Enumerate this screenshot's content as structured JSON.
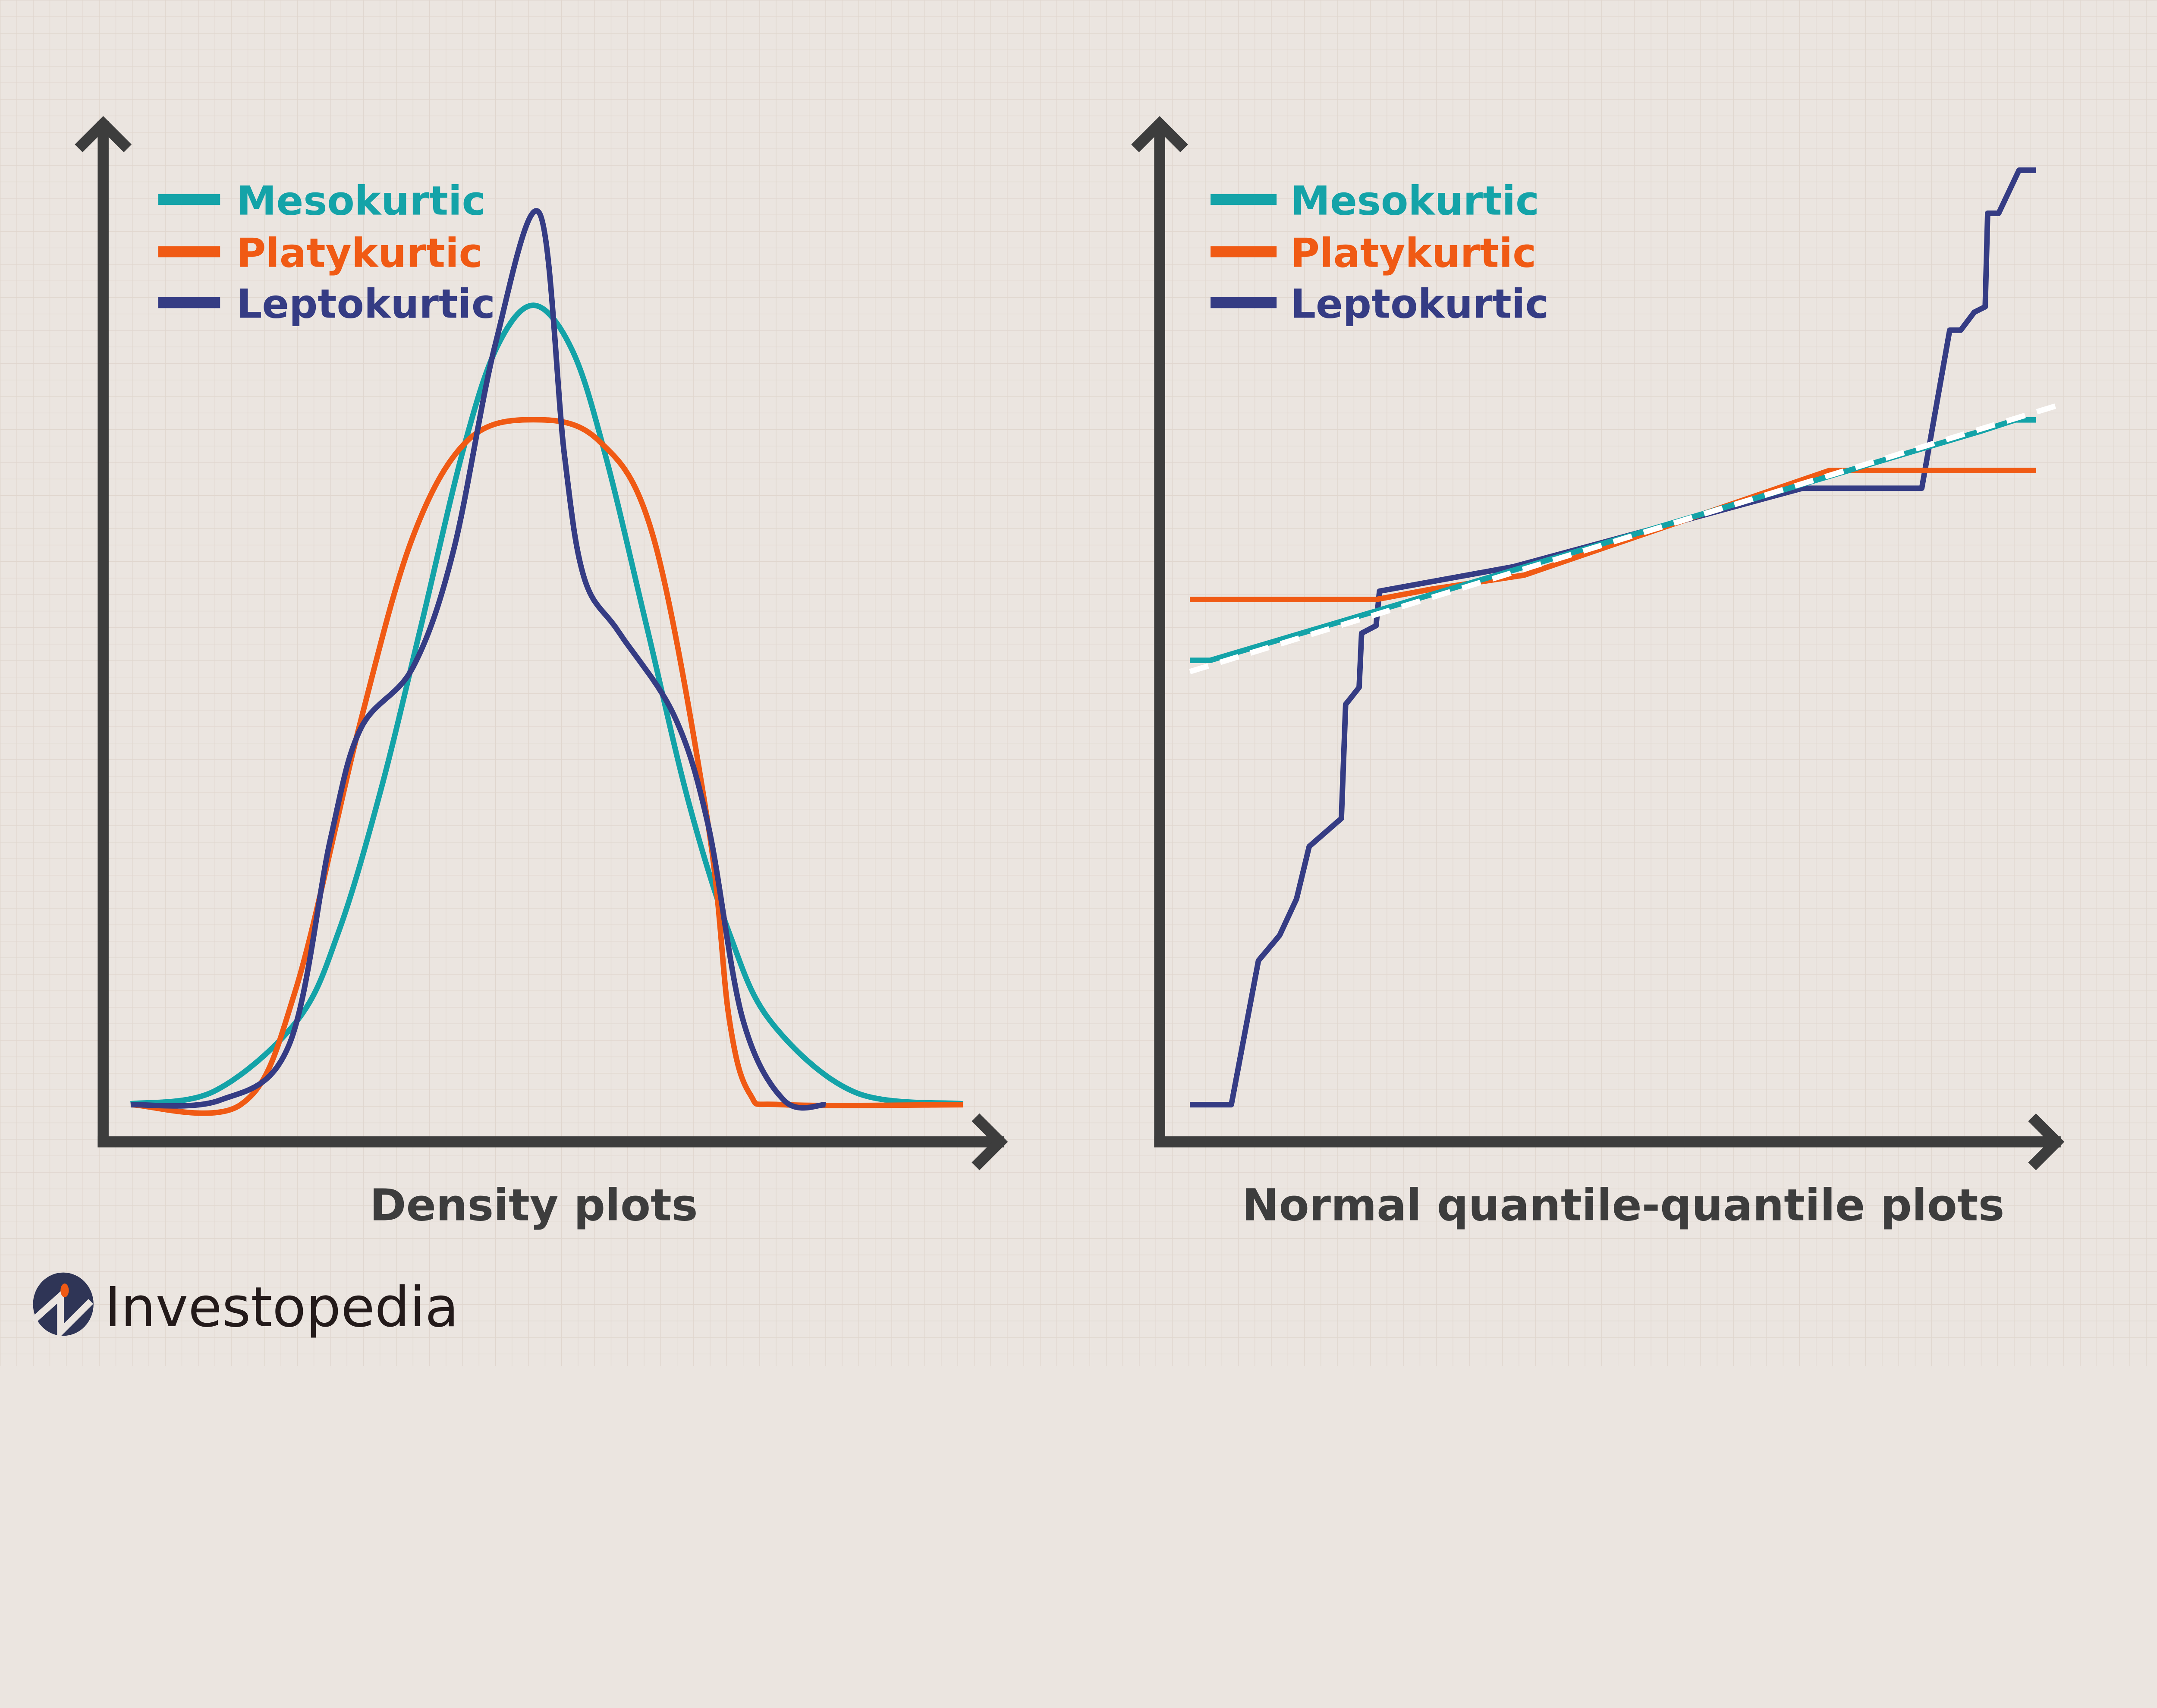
{
  "colors": {
    "background": "#ebe5e0",
    "axis": "#3d3d3d",
    "mesokurtic": "#14a3a8",
    "platykurtic": "#f05a14",
    "leptokurtic": "#353c84",
    "reference": "#ffffff"
  },
  "brand": {
    "name": "Investopedia",
    "logo_colors": [
      "#2f3556",
      "#f05a14"
    ]
  },
  "chart_data": [
    {
      "type": "line",
      "title": "Density plots",
      "xlabel": "",
      "ylabel": "",
      "xlim": [
        0,
        100
      ],
      "ylim": [
        0,
        100
      ],
      "grid": false,
      "axis_ticks": false,
      "legend": {
        "placement": "top-left",
        "entries": [
          "Mesokurtic",
          "Platykurtic",
          "Leptokurtic"
        ]
      },
      "series": [
        {
          "name": "Mesokurtic",
          "color": "#14a3a8",
          "points": [
            [
              0,
              0.1
            ],
            [
              10,
              1.5
            ],
            [
              20,
              9.4
            ],
            [
              25,
              19.4
            ],
            [
              30,
              35
            ],
            [
              35,
              54
            ],
            [
              40,
              73.4
            ],
            [
              44,
              84.7
            ],
            [
              48.4,
              89.4
            ],
            [
              53,
              84.5
            ],
            [
              57,
              72.8
            ],
            [
              62,
              53.5
            ],
            [
              67,
              34
            ],
            [
              72,
              19
            ],
            [
              77,
              9.2
            ],
            [
              87,
              1.4
            ],
            [
              100,
              0.1
            ]
          ]
        },
        {
          "name": "Platykurtic",
          "color": "#f05a14",
          "points": [
            [
              0,
              0
            ],
            [
              13.2,
              0
            ],
            [
              19.8,
              12.8
            ],
            [
              27.6,
              42.8
            ],
            [
              33.9,
              63.5
            ],
            [
              40.5,
              74.3
            ],
            [
              48.4,
              76.6
            ],
            [
              56.2,
              74.3
            ],
            [
              62.8,
              63.5
            ],
            [
              69.4,
              31.2
            ],
            [
              71.9,
              9.7
            ],
            [
              74.4,
              1.2
            ],
            [
              78.5,
              0
            ],
            [
              100,
              0
            ]
          ]
        },
        {
          "name": "Leptokurtic",
          "color": "#353c84",
          "points": [
            [
              0,
              0
            ],
            [
              10.7,
              0.5
            ],
            [
              19,
              6.6
            ],
            [
              24,
              29.7
            ],
            [
              27.6,
              42
            ],
            [
              33.9,
              48.9
            ],
            [
              38.8,
              62
            ],
            [
              43.8,
              85
            ],
            [
              49.1,
              99.7
            ],
            [
              52.1,
              72.8
            ],
            [
              54.5,
              58.9
            ],
            [
              58.7,
              52.8
            ],
            [
              65.3,
              43.5
            ],
            [
              69.4,
              31.2
            ],
            [
              73.5,
              9.7
            ],
            [
              78.5,
              0.5
            ],
            [
              83.5,
              0
            ]
          ]
        }
      ]
    },
    {
      "type": "line",
      "title": "Normal quantile-quantile plots",
      "xlabel": "",
      "ylabel": "",
      "xlim": [
        0,
        100
      ],
      "ylim": [
        0,
        100
      ],
      "grid": false,
      "axis_ticks": false,
      "legend": {
        "placement": "top-left",
        "entries": [
          "Mesokurtic",
          "Platykurtic",
          "Leptokurtic"
        ]
      },
      "reference_line": {
        "style": "dashed",
        "color": "#ffffff",
        "points": [
          [
            0,
            46.3
          ],
          [
            102.4,
            74.7
          ]
        ]
      },
      "series": [
        {
          "name": "Mesokurtic",
          "color": "#14a3a8",
          "points": [
            [
              0,
              47.5
            ],
            [
              2.4,
              47.5
            ],
            [
              93.5,
              72
            ],
            [
              97.6,
              73.2
            ],
            [
              100,
              73.2
            ]
          ]
        },
        {
          "name": "Platykurtic",
          "color": "#f05a14",
          "points": [
            [
              0,
              54
            ],
            [
              22,
              54
            ],
            [
              28.5,
              55.1
            ],
            [
              39.5,
              56.6
            ],
            [
              75.6,
              67.8
            ],
            [
              100,
              67.8
            ]
          ]
        },
        {
          "name": "Leptokurtic",
          "color": "#353c84",
          "points": [
            [
              0,
              0
            ],
            [
              4.9,
              0
            ],
            [
              8.1,
              15.4
            ],
            [
              10.6,
              18.1
            ],
            [
              12.6,
              22
            ],
            [
              14.1,
              27.6
            ],
            [
              17.9,
              30.6
            ],
            [
              18.4,
              42.8
            ],
            [
              20,
              44.6
            ],
            [
              20.3,
              50.4
            ],
            [
              22,
              51.2
            ],
            [
              22.4,
              54.9
            ],
            [
              38.2,
              57.5
            ],
            [
              72.4,
              65.9
            ],
            [
              86.5,
              65.9
            ],
            [
              89.8,
              82.8
            ],
            [
              91.1,
              82.8
            ],
            [
              92.7,
              84.7
            ],
            [
              94,
              85.3
            ],
            [
              94.3,
              95.3
            ],
            [
              95.6,
              95.3
            ],
            [
              98,
              99.9
            ],
            [
              100,
              99.9
            ]
          ]
        }
      ]
    }
  ]
}
